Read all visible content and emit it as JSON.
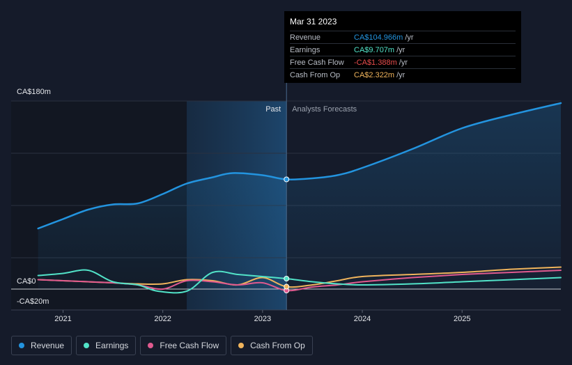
{
  "chart_data": {
    "type": "line",
    "y_axis_labels": [
      "CA$180m",
      "CA$0",
      "-CA$20m"
    ],
    "ylim": [
      -20,
      180
    ],
    "x_ticks": [
      "2021",
      "2022",
      "2023",
      "2024",
      "2025"
    ],
    "x_tick_values": [
      2021,
      2022,
      2023,
      2024,
      2025
    ],
    "xlim": [
      2020.48,
      2025.99
    ],
    "forecast_start": 2023.24,
    "highlight_start": 2022.24,
    "past_label": "Past",
    "forecast_label": "Analysts Forecasts",
    "series": [
      {
        "name": "Revenue",
        "color": "#2394df",
        "x": [
          2020.75,
          2021.0,
          2021.25,
          2021.5,
          2021.75,
          2022.0,
          2022.24,
          2022.5,
          2022.7,
          2023.0,
          2023.24,
          2023.5,
          2023.75,
          2024.0,
          2024.5,
          2025.0,
          2025.5,
          2025.99
        ],
        "values": [
          58,
          67,
          76,
          81,
          82,
          91,
          101,
          107,
          111,
          109,
          105,
          106,
          109,
          116,
          134,
          154,
          167,
          178
        ]
      },
      {
        "name": "Earnings",
        "color": "#52e3c8",
        "x": [
          2020.75,
          2021.0,
          2021.25,
          2021.5,
          2021.75,
          2021.95,
          2022.24,
          2022.5,
          2022.75,
          2023.0,
          2023.24,
          2023.5,
          2023.75,
          2024.0,
          2024.5,
          2025.0,
          2025.5,
          2025.99
        ],
        "values": [
          13,
          15,
          18,
          7,
          4,
          -2,
          -2,
          16,
          14,
          12,
          10,
          7,
          5,
          4,
          5,
          7,
          9,
          11
        ]
      },
      {
        "name": "Free Cash Flow",
        "color": "#e05a8f",
        "x": [
          2020.75,
          2021.0,
          2021.5,
          2021.75,
          2022.0,
          2022.24,
          2022.5,
          2022.75,
          2023.0,
          2023.24,
          2023.5,
          2023.75,
          2024.0,
          2024.5,
          2025.0,
          2025.5,
          2025.99
        ],
        "values": [
          9,
          8,
          6,
          4,
          0,
          8,
          7,
          4,
          6,
          -1.4,
          2,
          4,
          7,
          11,
          14,
          16,
          18
        ]
      },
      {
        "name": "Cash From Op",
        "color": "#f0b45c",
        "x": [
          2020.75,
          2021.0,
          2021.5,
          2021.75,
          2022.0,
          2022.24,
          2022.5,
          2022.75,
          2023.0,
          2023.24,
          2023.5,
          2023.75,
          2024.0,
          2024.5,
          2025.0,
          2025.5,
          2025.99
        ],
        "values": [
          9,
          8,
          6,
          5,
          5,
          9,
          8,
          4,
          11,
          2.3,
          4,
          8,
          12,
          14,
          16,
          19,
          21
        ]
      }
    ]
  },
  "tooltip": {
    "date": "Mar 31 2023",
    "unit": "/yr",
    "rows": [
      {
        "label": "Revenue",
        "value": "CA$104.966m",
        "color": "#2394df"
      },
      {
        "label": "Earnings",
        "value": "CA$9.707m",
        "color": "#52e3c8"
      },
      {
        "label": "Free Cash Flow",
        "value": "-CA$1.388m",
        "color": "#e84c4c"
      },
      {
        "label": "Cash From Op",
        "value": "CA$2.322m",
        "color": "#f0b45c"
      }
    ]
  },
  "legend": [
    {
      "label": "Revenue",
      "color": "#2394df"
    },
    {
      "label": "Earnings",
      "color": "#52e3c8"
    },
    {
      "label": "Free Cash Flow",
      "color": "#e05a8f"
    },
    {
      "label": "Cash From Op",
      "color": "#f0b45c"
    }
  ]
}
